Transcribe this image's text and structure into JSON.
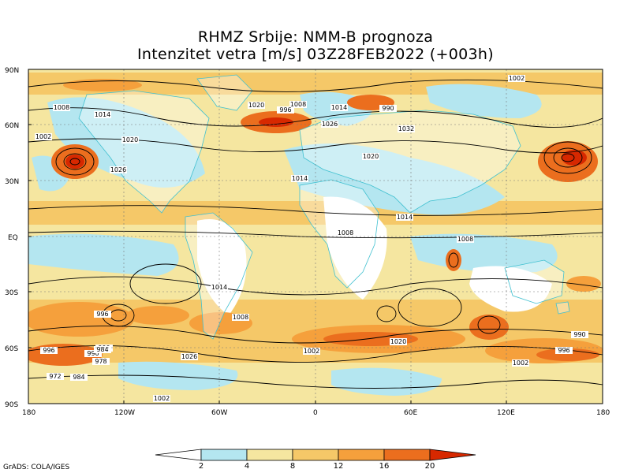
{
  "title_line1": "RHMZ Srbije: NMM-B prognoza",
  "title_line2": "Intenzitet vetra [m/s] 03Z28FEB2022 (+003h)",
  "axes": {
    "lat_labels": [
      "90N",
      "60N",
      "30N",
      "EQ",
      "30S",
      "60S",
      "90S"
    ],
    "lon_labels": [
      "180",
      "120W",
      "60W",
      "0",
      "60E",
      "120E",
      "180"
    ]
  },
  "colorbar": {
    "levels": [
      "2",
      "4",
      "8",
      "12",
      "16",
      "20"
    ],
    "colors": [
      "#ffffff",
      "#b4e6f0",
      "#f5e6a0",
      "#f5c868",
      "#f5a03c",
      "#eb6e1e",
      "#d72800"
    ]
  },
  "isobar_labels": [
    "1008",
    "1014",
    "1020",
    "1026",
    "1002",
    "996",
    "990",
    "984",
    "978",
    "1032",
    "1002",
    "1008",
    "1014",
    "1020",
    "1026",
    "996",
    "990",
    "1008",
    "1014",
    "1002",
    "1020",
    "1014",
    "1008",
    "1026",
    "1020",
    "1014",
    "1008",
    "1002",
    "996",
    "990",
    "984",
    "972",
    "1002",
    "996",
    "990"
  ],
  "credit": "GrADS: COLA/IGES"
}
